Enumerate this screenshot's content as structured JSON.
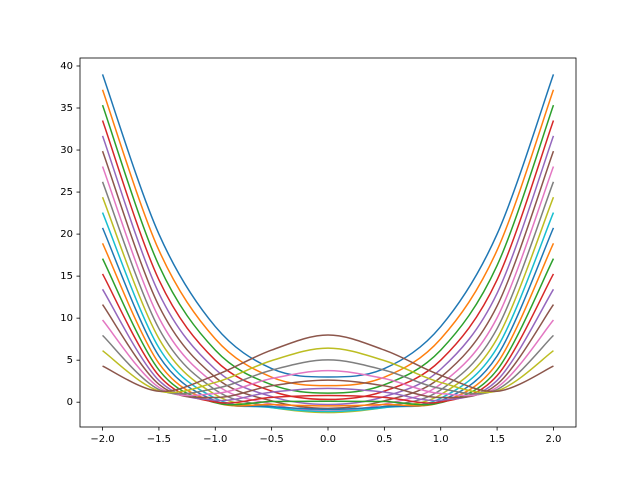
{
  "chart_data": {
    "type": "line",
    "x": [
      -2,
      -1.5,
      -1,
      -0.5,
      0,
      0.5,
      1,
      1.5,
      2
    ],
    "xlim": [
      -2.2,
      2.2
    ],
    "ylim": [
      -2.95,
      40.95
    ],
    "xticks": [
      {
        "value": -2,
        "label": "−2.0"
      },
      {
        "value": -1.5,
        "label": "−1.5"
      },
      {
        "value": -1,
        "label": "−1.0"
      },
      {
        "value": -0.5,
        "label": "−0.5"
      },
      {
        "value": 0,
        "label": "0.0"
      },
      {
        "value": 0.5,
        "label": "0.5"
      },
      {
        "value": 1,
        "label": "1.0"
      },
      {
        "value": 1.5,
        "label": "1.5"
      },
      {
        "value": 2,
        "label": "2.0"
      }
    ],
    "yticks": [
      0,
      5,
      10,
      15,
      20,
      25,
      30,
      35,
      40
    ],
    "series": [
      {
        "color": "#1f77b4",
        "values": [
          39,
          20,
          9,
          4,
          3,
          4,
          9,
          20,
          39
        ]
      },
      {
        "color": "#ff7f0e",
        "values": [
          37.17,
          18.08,
          7.54,
          2.98,
          1.97,
          2.98,
          7.54,
          18.08,
          37.17
        ]
      },
      {
        "color": "#2ca02c",
        "values": [
          35.35,
          16.27,
          6.2,
          2.08,
          1.08,
          2.08,
          6.2,
          16.27,
          35.35
        ]
      },
      {
        "color": "#d62728",
        "values": [
          33.52,
          14.56,
          5,
          1.32,
          0.33,
          1.32,
          5,
          14.56,
          33.52
        ]
      },
      {
        "color": "#9467bd",
        "values": [
          31.69,
          12.96,
          3.92,
          0.67,
          -0.27,
          0.67,
          3.92,
          12.96,
          31.69
        ]
      },
      {
        "color": "#8c564b",
        "values": [
          29.87,
          11.45,
          2.97,
          0.16,
          -0.73,
          0.16,
          2.97,
          11.45,
          29.87
        ]
      },
      {
        "color": "#e377c2",
        "values": [
          28.04,
          10.05,
          2.16,
          -0.23,
          -1.04,
          -0.23,
          2.16,
          10.05,
          28.04
        ]
      },
      {
        "color": "#7f7f7f",
        "values": [
          26.22,
          8.76,
          1.47,
          -0.5,
          -1.21,
          -0.5,
          1.47,
          8.76,
          26.22
        ]
      },
      {
        "color": "#bcbd22",
        "values": [
          24.39,
          7.57,
          0.9,
          -0.63,
          -1.23,
          -0.63,
          0.9,
          7.57,
          24.39
        ]
      },
      {
        "color": "#17becf",
        "values": [
          22.56,
          6.48,
          0.47,
          -0.64,
          -1.11,
          -0.64,
          0.47,
          6.48,
          22.56
        ]
      },
      {
        "color": "#1f77b4",
        "values": [
          20.74,
          5.5,
          0.16,
          -0.53,
          -0.85,
          -0.53,
          0.16,
          5.5,
          20.74
        ]
      },
      {
        "color": "#ff7f0e",
        "values": [
          18.91,
          4.62,
          -0.01,
          -0.28,
          -0.44,
          -0.28,
          -0.01,
          4.62,
          18.91
        ]
      },
      {
        "color": "#2ca02c",
        "values": [
          17.08,
          3.84,
          -0.06,
          0.08,
          0.11,
          0.08,
          -0.06,
          3.84,
          17.08
        ]
      },
      {
        "color": "#d62728",
        "values": [
          15.26,
          3.16,
          0.02,
          0.58,
          0.8,
          0.58,
          0.02,
          3.16,
          15.26
        ]
      },
      {
        "color": "#9467bd",
        "values": [
          13.43,
          2.59,
          0.23,
          1.2,
          1.64,
          1.2,
          0.23,
          2.59,
          13.43
        ]
      },
      {
        "color": "#8c564b",
        "values": [
          11.61,
          2.13,
          0.56,
          1.95,
          2.63,
          1.95,
          0.56,
          2.13,
          11.61
        ]
      },
      {
        "color": "#e377c2",
        "values": [
          9.78,
          1.77,
          1.03,
          2.82,
          3.75,
          2.82,
          1.03,
          1.77,
          9.78
        ]
      },
      {
        "color": "#7f7f7f",
        "values": [
          7.95,
          1.51,
          1.63,
          3.82,
          5.03,
          3.82,
          1.63,
          1.51,
          7.95
        ]
      },
      {
        "color": "#bcbd22",
        "values": [
          6.13,
          1.35,
          2.35,
          4.95,
          6.44,
          4.95,
          2.35,
          1.35,
          6.13
        ]
      },
      {
        "color": "#8c564b",
        "values": [
          4.3,
          1.3,
          3.2,
          6.2,
          8,
          6.2,
          3.2,
          1.3,
          4.3
        ]
      }
    ]
  }
}
